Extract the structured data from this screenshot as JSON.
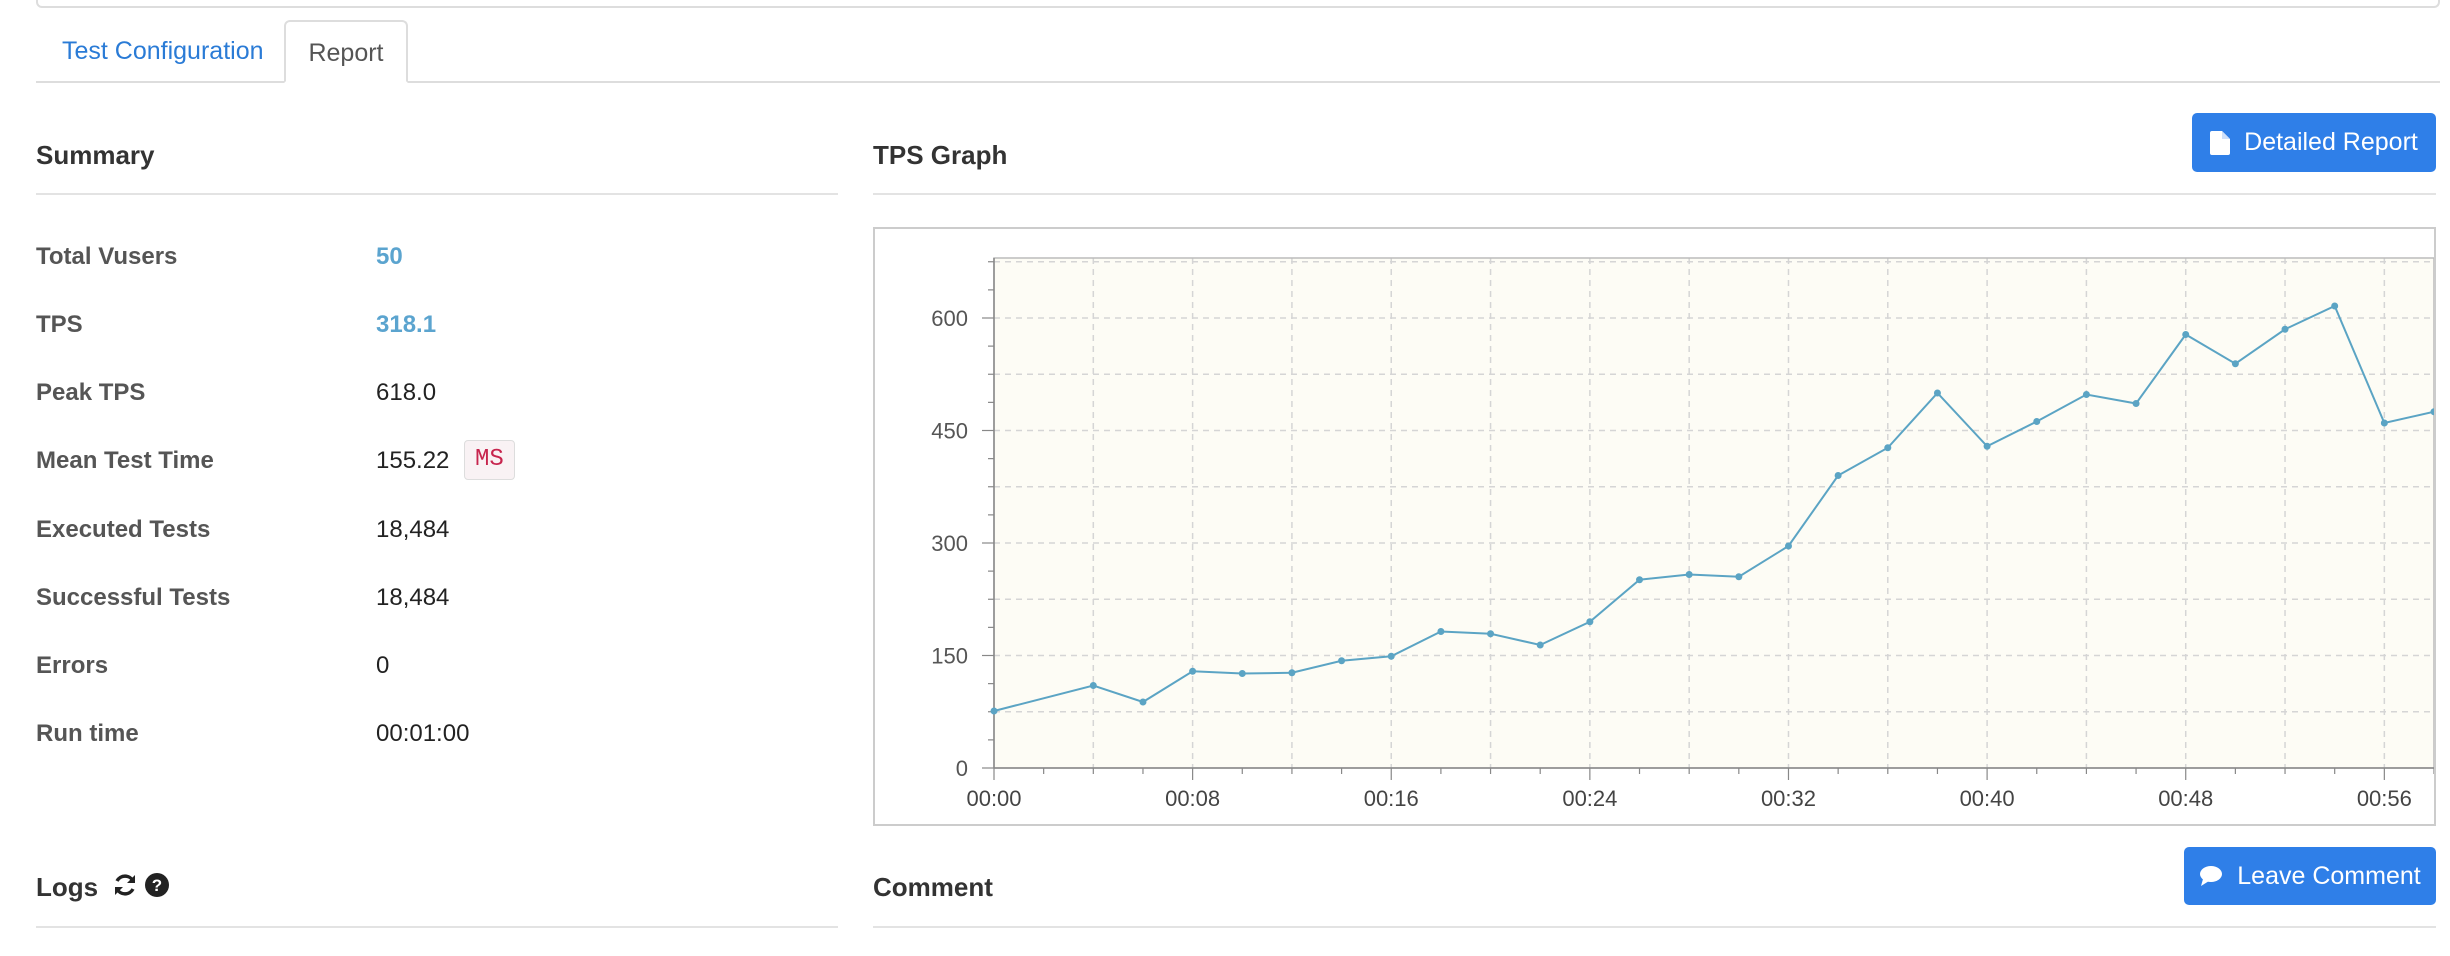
{
  "tabs": [
    {
      "label": "Test Configuration"
    },
    {
      "label": "Report"
    }
  ],
  "summary": {
    "title": "Summary",
    "rows": [
      {
        "label": "Total Vusers",
        "value": "50"
      },
      {
        "label": "TPS",
        "value": "318.1"
      },
      {
        "label": "Peak TPS",
        "value": "618.0"
      },
      {
        "label": "Mean Test Time",
        "value": "155.22",
        "unit": "MS"
      },
      {
        "label": "Executed Tests",
        "value": "18,484"
      },
      {
        "label": "Successful Tests",
        "value": "18,484"
      },
      {
        "label": "Errors",
        "value": "0"
      },
      {
        "label": "Run time",
        "value": "00:01:00"
      }
    ]
  },
  "tps_graph": {
    "title": "TPS Graph",
    "detailed_report_label": "Detailed Report"
  },
  "logs": {
    "title": "Logs"
  },
  "comment": {
    "title": "Comment",
    "leave_comment_label": "Leave Comment"
  },
  "colors": {
    "accent": "#2f7fe8",
    "line": "#5ba4c4",
    "plot_bg": "#fdfcf5"
  },
  "chart_data": {
    "type": "line",
    "x": [
      "00:00",
      "00:04",
      "00:06",
      "00:08",
      "00:10",
      "00:12",
      "00:14",
      "00:16",
      "00:18",
      "00:20",
      "00:22",
      "00:24",
      "00:26",
      "00:28",
      "00:30",
      "00:32",
      "00:34",
      "00:36",
      "00:38",
      "00:40",
      "00:42",
      "00:44",
      "00:46",
      "00:48",
      "00:50",
      "00:52",
      "00:54",
      "00:56",
      "00:58"
    ],
    "x_seconds": [
      0,
      4,
      6,
      8,
      10,
      12,
      14,
      16,
      18,
      20,
      22,
      24,
      26,
      28,
      30,
      32,
      34,
      36,
      38,
      40,
      42,
      44,
      46,
      48,
      50,
      52,
      54,
      56,
      58
    ],
    "values": [
      76,
      110,
      88,
      129,
      126,
      127,
      143,
      149,
      182,
      179,
      164,
      195,
      251,
      258,
      255,
      296,
      390,
      427,
      500,
      429,
      462,
      498,
      486,
      578,
      539,
      585,
      616,
      460,
      475
    ],
    "x_ticks": [
      "00:00",
      "00:08",
      "00:16",
      "00:24",
      "00:32",
      "00:40",
      "00:48",
      "00:56"
    ],
    "x_tick_seconds": [
      0,
      8,
      16,
      24,
      32,
      40,
      48,
      56
    ],
    "y_ticks": [
      "0",
      "150",
      "300",
      "450",
      "600"
    ],
    "y_tick_values": [
      0,
      150,
      300,
      450,
      600
    ],
    "xlim": [
      0,
      58
    ],
    "ylim": [
      0,
      680
    ],
    "grid": true
  }
}
